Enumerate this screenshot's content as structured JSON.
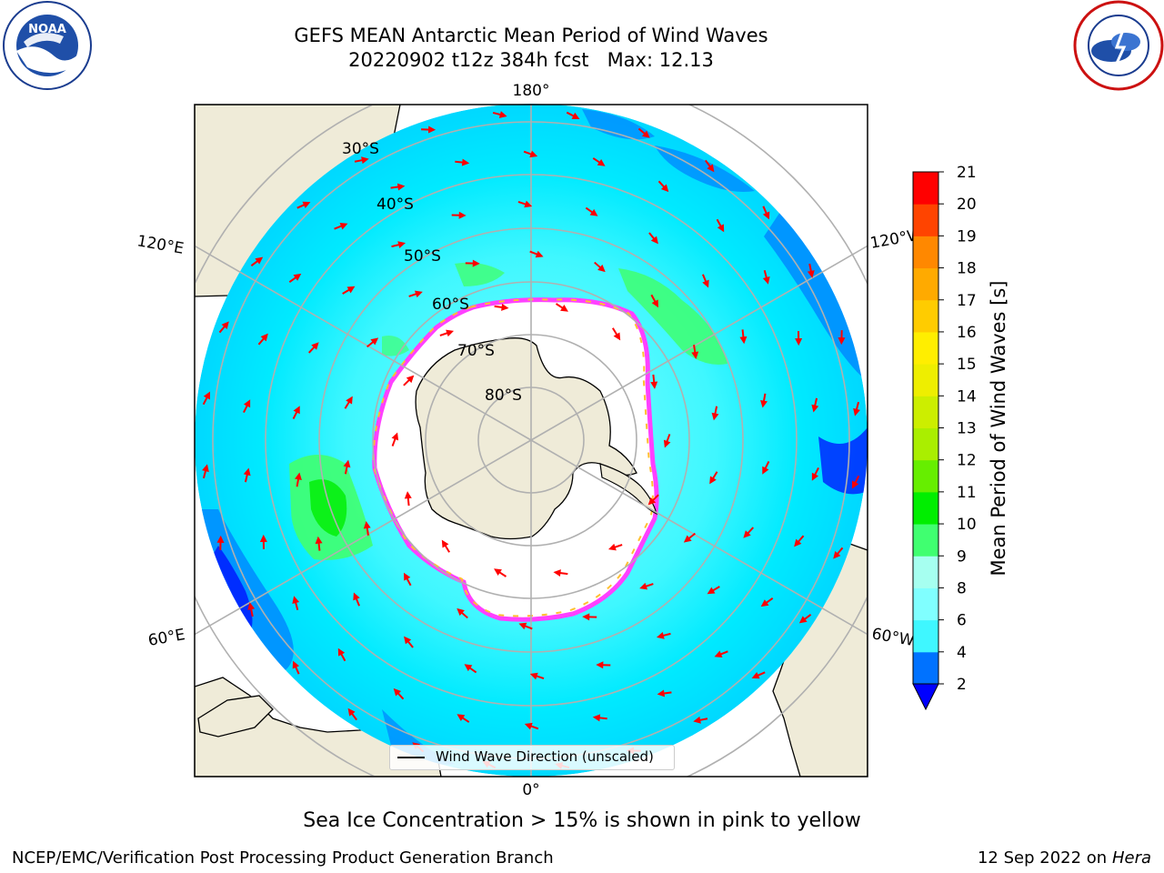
{
  "header": {
    "title_line1": "GEFS MEAN Antarctic Mean Period of Wind Waves",
    "title_line2": "20220902 t12z 384h fcst   Max: 12.13"
  },
  "logos": {
    "left": "NOAA",
    "right": "NATIONAL WEATHER SERVICE"
  },
  "map": {
    "lon_labels": [
      "180°",
      "120°E",
      "120°W",
      "60°E",
      "60°W",
      "0°"
    ],
    "lat_labels": [
      "30°S",
      "40°S",
      "50°S",
      "60°S",
      "70°S",
      "80°S"
    ],
    "legend_label": "Wind Wave Direction (unscaled)",
    "colors": {
      "land": "#efebd8",
      "ocean_light": "#00ffff",
      "ocean_pale": "#7fffff",
      "ocean_blue": "#007fff",
      "ocean_deep": "#0000ff",
      "green": "#40ff70",
      "ice_pink": "#ff40ff",
      "ice_yellow": "#ffc030",
      "arrow": "#ff0000",
      "grid": "#b0b0b0"
    }
  },
  "colorbar": {
    "label": "Mean Period of Wind Waves [s]",
    "ticks": [
      "2",
      "4",
      "6",
      "8",
      "9",
      "10",
      "11",
      "12",
      "13",
      "14",
      "15",
      "16",
      "17",
      "18",
      "19",
      "20",
      "21"
    ],
    "colors": [
      "#0072ff",
      "#00e5ff",
      "#3ff7ff",
      "#80ffff",
      "#a6fff0",
      "#40ff70",
      "#00ee00",
      "#66ee00",
      "#aaee00",
      "#ccee00",
      "#eeee00",
      "#ffee00",
      "#ffcc00",
      "#ffaa00",
      "#ff8800",
      "#ff4400",
      "#ff0000"
    ],
    "extend_color": "#0000ff"
  },
  "ice_note": "Sea Ice Concentration > 15% is shown in pink to yellow",
  "footer": {
    "left": "NCEP/EMC/Verification Post Processing Product Generation Branch",
    "right_date": "12 Sep 2022 on",
    "right_host": "Hera"
  }
}
